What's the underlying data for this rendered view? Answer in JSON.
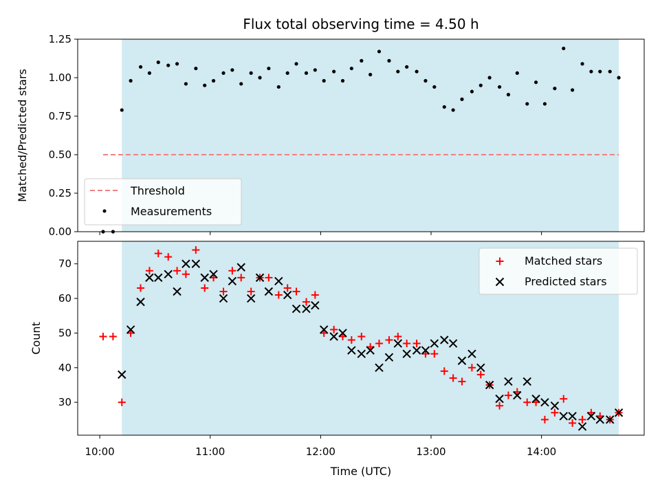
{
  "figure": {
    "title": "Flux total observing time = 4.50 h",
    "xlabel": "Time (UTC)"
  },
  "colors": {
    "shade": "#add8e6",
    "threshold": "#f08080",
    "matched": "#ff0000",
    "predicted": "#000000",
    "measurements": "#000000"
  },
  "chart_data": [
    {
      "type": "scatter",
      "ylabel": "Matched/Predicted stars",
      "xlim": [
        9.8,
        14.93
      ],
      "ylim": [
        0,
        1.25
      ],
      "yticks": [
        0,
        0.25,
        0.5,
        0.75,
        1.0,
        1.25
      ],
      "ytick_labels": [
        "0.00",
        "0.25",
        "0.50",
        "0.75",
        "1.00",
        "1.25"
      ],
      "shaded_span": [
        10.2,
        14.7
      ],
      "threshold": {
        "name": "Threshold",
        "y": 0.5,
        "x": [
          10.03,
          14.7
        ]
      },
      "series": [
        {
          "name": "Measurements",
          "x": [
            10.03,
            10.12,
            10.2,
            10.28,
            10.37,
            10.45,
            10.53,
            10.62,
            10.7,
            10.78,
            10.87,
            10.95,
            11.03,
            11.12,
            11.2,
            11.28,
            11.37,
            11.45,
            11.53,
            11.62,
            11.7,
            11.78,
            11.87,
            11.95,
            12.03,
            12.12,
            12.2,
            12.28,
            12.37,
            12.45,
            12.53,
            12.62,
            12.7,
            12.78,
            12.87,
            12.95,
            13.03,
            13.12,
            13.2,
            13.28,
            13.37,
            13.45,
            13.53,
            13.62,
            13.7,
            13.78,
            13.87,
            13.95,
            14.03,
            14.12,
            14.2,
            14.28,
            14.37,
            14.45,
            14.53,
            14.62,
            14.7
          ],
          "y": [
            0.0,
            0.0,
            0.79,
            0.98,
            1.07,
            1.03,
            1.1,
            1.08,
            1.09,
            0.96,
            1.06,
            0.95,
            0.98,
            1.03,
            1.05,
            0.96,
            1.03,
            1.0,
            1.06,
            0.94,
            1.03,
            1.09,
            1.03,
            1.05,
            0.98,
            1.04,
            0.98,
            1.06,
            1.11,
            1.02,
            1.17,
            1.11,
            1.04,
            1.07,
            1.04,
            0.98,
            0.94,
            0.81,
            0.79,
            0.86,
            0.91,
            0.95,
            1.0,
            0.94,
            0.89,
            1.03,
            0.83,
            0.97,
            0.83,
            0.93,
            1.19,
            0.92,
            1.09,
            1.04,
            1.04,
            1.04,
            1.0
          ]
        }
      ],
      "legend": "lower-left"
    },
    {
      "type": "scatter",
      "ylabel": "Count",
      "xlim": [
        9.8,
        14.93
      ],
      "ylim": [
        20.5,
        76.5
      ],
      "yticks": [
        30,
        40,
        50,
        60,
        70
      ],
      "xticks": [
        10,
        11,
        12,
        13,
        14
      ],
      "xtick_labels": [
        "10:00",
        "11:00",
        "12:00",
        "13:00",
        "14:00"
      ],
      "shaded_span": [
        10.2,
        14.7
      ],
      "series": [
        {
          "name": "Matched stars",
          "marker": "plus",
          "x": [
            10.03,
            10.12,
            10.2,
            10.28,
            10.37,
            10.45,
            10.53,
            10.62,
            10.7,
            10.78,
            10.87,
            10.95,
            11.03,
            11.12,
            11.2,
            11.28,
            11.37,
            11.45,
            11.53,
            11.62,
            11.7,
            11.78,
            11.87,
            11.95,
            12.03,
            12.12,
            12.2,
            12.28,
            12.37,
            12.45,
            12.53,
            12.62,
            12.7,
            12.78,
            12.87,
            12.95,
            13.03,
            13.12,
            13.2,
            13.28,
            13.37,
            13.45,
            13.53,
            13.62,
            13.7,
            13.78,
            13.87,
            13.95,
            14.03,
            14.12,
            14.2,
            14.28,
            14.37,
            14.45,
            14.53,
            14.62,
            14.7
          ],
          "y": [
            49,
            49,
            30,
            50,
            63,
            68,
            73,
            72,
            68,
            67,
            74,
            63,
            66,
            62,
            68,
            66,
            62,
            66,
            66,
            61,
            63,
            62,
            59,
            61,
            50,
            51,
            49,
            48,
            49,
            46,
            47,
            48,
            49,
            47,
            47,
            44,
            44,
            39,
            37,
            36,
            40,
            38,
            35,
            29,
            32,
            33,
            30,
            30,
            25,
            27,
            31,
            24,
            25,
            27,
            26,
            25,
            27
          ]
        },
        {
          "name": "Predicted stars",
          "marker": "x",
          "x": [
            10.03,
            10.12,
            10.2,
            10.28,
            10.37,
            10.45,
            10.53,
            10.62,
            10.7,
            10.78,
            10.87,
            10.95,
            11.03,
            11.12,
            11.2,
            11.28,
            11.37,
            11.45,
            11.53,
            11.62,
            11.7,
            11.78,
            11.87,
            11.95,
            12.03,
            12.12,
            12.2,
            12.28,
            12.37,
            12.45,
            12.53,
            12.62,
            12.7,
            12.78,
            12.87,
            12.95,
            13.03,
            13.12,
            13.2,
            13.28,
            13.37,
            13.45,
            13.53,
            13.62,
            13.7,
            13.78,
            13.87,
            13.95,
            14.03,
            14.12,
            14.2,
            14.28,
            14.37,
            14.45,
            14.53,
            14.62,
            14.7
          ],
          "y": [
            null,
            null,
            38,
            51,
            59,
            66,
            66,
            67,
            62,
            70,
            70,
            66,
            67,
            60,
            65,
            69,
            60,
            66,
            62,
            65,
            61,
            57,
            57,
            58,
            51,
            49,
            50,
            45,
            44,
            45,
            40,
            43,
            47,
            44,
            45,
            45,
            47,
            48,
            47,
            42,
            44,
            40,
            35,
            31,
            36,
            32,
            36,
            31,
            30,
            29,
            26,
            26,
            23,
            26,
            25,
            25,
            27
          ]
        }
      ],
      "legend": "upper-right"
    }
  ]
}
